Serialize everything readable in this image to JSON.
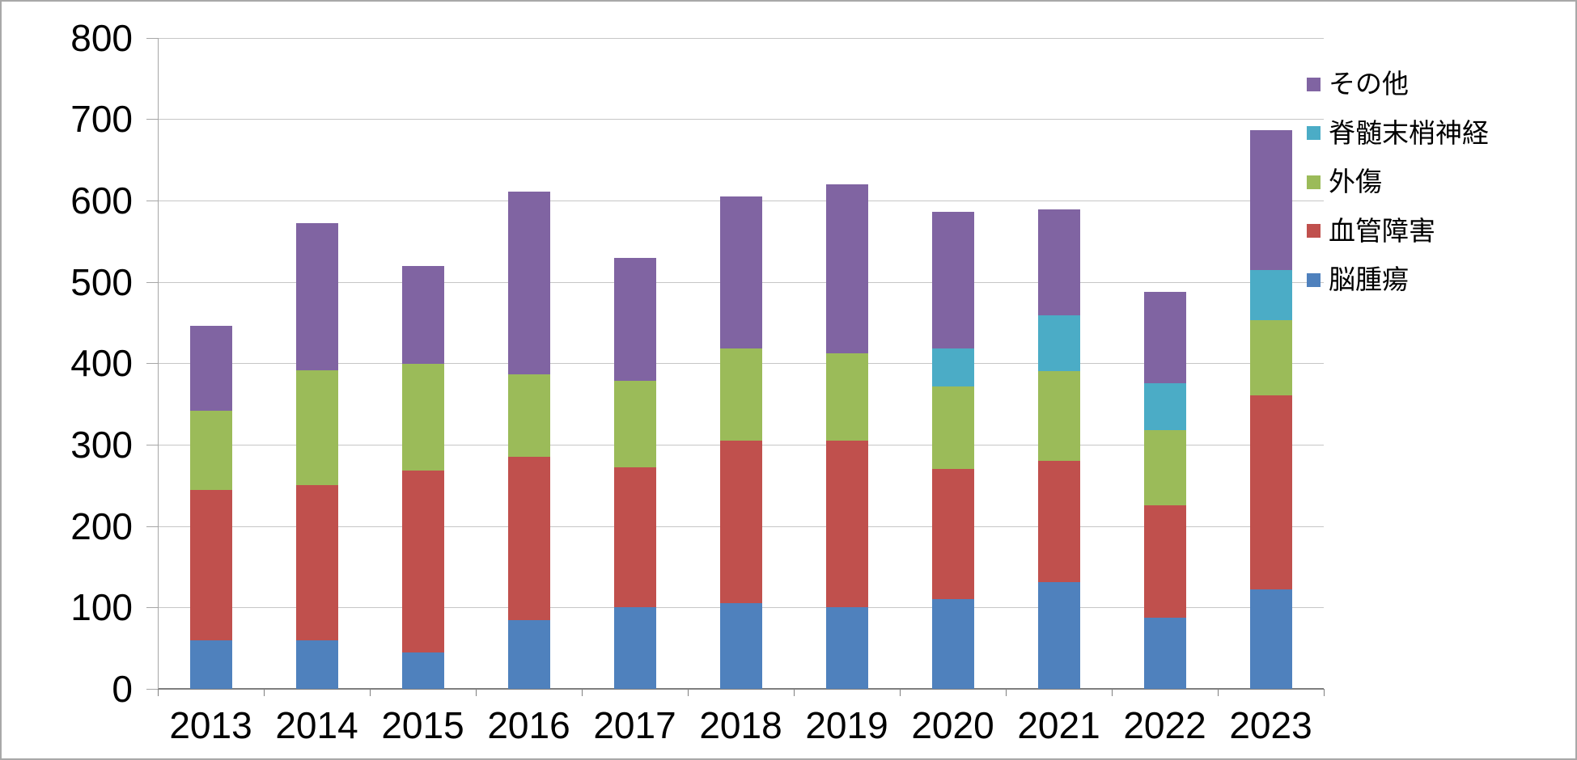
{
  "chart_data": {
    "type": "bar",
    "stacked": true,
    "title": "",
    "xlabel": "",
    "ylabel": "",
    "categories": [
      "2013",
      "2014",
      "2015",
      "2016",
      "2017",
      "2018",
      "2019",
      "2020",
      "2021",
      "2022",
      "2023"
    ],
    "series": [
      {
        "name": "脳腫瘍",
        "color": "#4F81BD",
        "values": [
          60,
          60,
          45,
          84,
          100,
          105,
          100,
          110,
          131,
          87,
          122
        ]
      },
      {
        "name": "血管障害",
        "color": "#C0504D",
        "values": [
          184,
          190,
          223,
          201,
          172,
          200,
          205,
          160,
          149,
          138,
          239
        ]
      },
      {
        "name": "外傷",
        "color": "#9BBB59",
        "values": [
          98,
          141,
          131,
          101,
          106,
          113,
          107,
          101,
          110,
          93,
          92
        ]
      },
      {
        "name": "脊髄末梢神経",
        "color": "#4BACC6",
        "values": [
          0,
          0,
          0,
          0,
          0,
          0,
          0,
          47,
          69,
          57,
          61
        ]
      },
      {
        "name": "その他",
        "color": "#8064A2",
        "values": [
          104,
          181,
          120,
          225,
          151,
          187,
          208,
          168,
          130,
          113,
          172
        ]
      }
    ],
    "stack_totals": [
      446,
      572,
      519,
      611,
      529,
      605,
      620,
      586,
      589,
      488,
      686
    ],
    "ylim": [
      0,
      800
    ],
    "ytick_interval": 100,
    "ytick_labels": [
      "0",
      "100",
      "200",
      "300",
      "400",
      "500",
      "600",
      "700",
      "800"
    ],
    "grid": true,
    "legend": {
      "position": "right",
      "items_top_to_bottom": [
        "その他",
        "脊髄末梢神経",
        "外傷",
        "血管障害",
        "脳腫瘍"
      ]
    }
  },
  "style_colors": {
    "background": "#FFFFFF",
    "gridline": "#C6C6C6",
    "x_axis": "#7F7F7F",
    "y_axis": "#A6A6A6",
    "text": "#000000",
    "frame_border": "#A8A8A8"
  }
}
